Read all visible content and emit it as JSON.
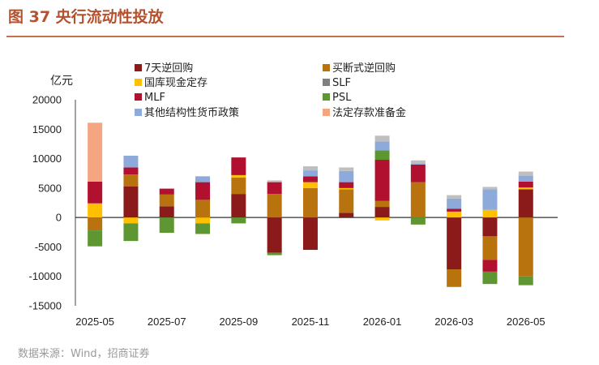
{
  "figure": {
    "title": "图 37 央行流动性投放",
    "source": "数据来源：Wind，招商证券"
  },
  "chart_data": {
    "type": "bar",
    "stacked": true,
    "unit": "亿元",
    "ylim": [
      -15000,
      20000
    ],
    "yticks": [
      -15000,
      -10000,
      -5000,
      0,
      5000,
      10000,
      15000,
      20000
    ],
    "categories": [
      "2025-05",
      "2025-06",
      "2025-07",
      "2025-08",
      "2025-09",
      "2025-10",
      "2025-11",
      "2025-12",
      "2026-01",
      "2026-02",
      "2026-03",
      "2026-04",
      "2026-05"
    ],
    "xtick_labels": [
      "2025-05",
      "2025-07",
      "2025-09",
      "2025-11",
      "2026-01",
      "2026-03",
      "2026-05"
    ],
    "legend_position": "top",
    "series": [
      {
        "name": "7天逆回购",
        "color": "#8b1a1a",
        "values": [
          0,
          5300,
          1900,
          0,
          4000,
          -6000,
          -5500,
          800,
          1800,
          0,
          -8800,
          -3200,
          4800
        ]
      },
      {
        "name": "买断式逆回购",
        "color": "#b8730f",
        "values": [
          -2200,
          2000,
          2000,
          3000,
          2800,
          4000,
          5000,
          4000,
          1000,
          6000,
          -3000,
          -4000,
          -10000
        ]
      },
      {
        "name": "国库现金定存",
        "color": "#ffc000",
        "values": [
          2400,
          -1000,
          0,
          -1000,
          400,
          0,
          1000,
          200,
          -500,
          0,
          1000,
          1300,
          300
        ]
      },
      {
        "name": "SLF",
        "color": "#7f7f7f",
        "values": [
          0,
          0,
          0,
          0,
          0,
          0,
          0,
          0,
          0,
          0,
          0,
          0,
          0
        ]
      },
      {
        "name": "MLF",
        "color": "#b2102f",
        "values": [
          3700,
          1200,
          1000,
          3000,
          3000,
          2000,
          1000,
          1000,
          7000,
          3000,
          500,
          -2000,
          1000
        ]
      },
      {
        "name": "PSL",
        "color": "#5e9732",
        "values": [
          -2700,
          -3000,
          -2600,
          -1800,
          -1000,
          -400,
          0,
          0,
          1600,
          -1200,
          0,
          -2100,
          -1500
        ]
      },
      {
        "name": "其他结构性货币政策",
        "color": "#8eaadb",
        "values": [
          0,
          2000,
          0,
          1000,
          0,
          0,
          1000,
          1900,
          1500,
          200,
          1700,
          3500,
          1000
        ]
      },
      {
        "name": "法定存款准备金",
        "color": "#f4a582",
        "values": [
          10000,
          0,
          0,
          0,
          0,
          0,
          0,
          0,
          0,
          0,
          0,
          0,
          0
        ]
      }
    ],
    "extra_series": [
      {
        "name": "other",
        "color": "#bfbfbf",
        "values": [
          0,
          0,
          0,
          0,
          0,
          300,
          700,
          600,
          1000,
          500,
          600,
          400,
          700
        ]
      }
    ]
  }
}
